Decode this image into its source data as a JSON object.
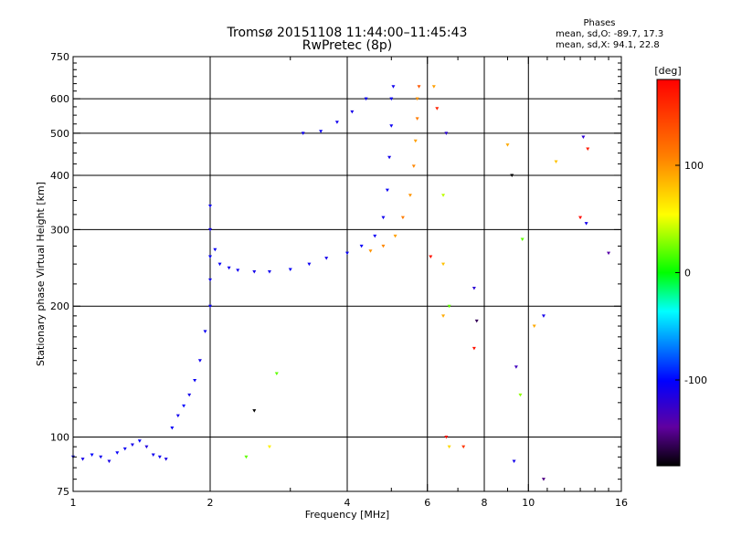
{
  "chart_data": {
    "type": "scatter",
    "title": "Tromsø 20151108 11:44:00–11:45:43",
    "subtitle": "RwPretec (8p)",
    "xlabel": "Frequency [MHz]",
    "ylabel": "Stationary phase Virtual Height [km]",
    "xscale": "log",
    "yscale": "log",
    "xlim": [
      1,
      16
    ],
    "ylim": [
      75,
      750
    ],
    "x_ticks": [
      1,
      2,
      4,
      6,
      8,
      10,
      16
    ],
    "x_tick_labels": [
      "1",
      "2",
      "4",
      "6",
      "8",
      "10",
      "16"
    ],
    "y_ticks": [
      75,
      100,
      200,
      300,
      400,
      500,
      600,
      750
    ],
    "y_tick_labels": [
      "75",
      "100",
      "200",
      "300",
      "400",
      "500",
      "600",
      "750"
    ],
    "grid": true,
    "annotation": {
      "heading": "Phases",
      "line1": "mean, sd,O: -89.7, 17.3",
      "line2": "mean, sd,X:  94.1, 22.8"
    },
    "colorbar": {
      "label": "[deg]",
      "range": [
        -180,
        180
      ],
      "ticks": [
        100,
        0,
        -100
      ],
      "tick_labels": [
        "100",
        "0",
        "-100"
      ],
      "colors": [
        "#ff0000",
        "#ff8000",
        "#ffff00",
        "#00ff00",
        "#00ffff",
        "#0000ff",
        "#6000a0",
        "#000000"
      ]
    },
    "series": [
      {
        "points": [
          [
            1.0,
            90,
            -105
          ],
          [
            1.05,
            89,
            -110
          ],
          [
            1.1,
            91,
            -100
          ],
          [
            1.15,
            90,
            -108
          ],
          [
            1.2,
            88,
            -112
          ],
          [
            1.25,
            92,
            -104
          ],
          [
            1.3,
            94,
            -106
          ],
          [
            1.35,
            96,
            -110
          ],
          [
            1.4,
            98,
            -102
          ],
          [
            1.45,
            95,
            -115
          ],
          [
            1.5,
            91,
            -108
          ],
          [
            1.55,
            90,
            -106
          ],
          [
            1.6,
            89,
            -112
          ],
          [
            1.65,
            105,
            -104
          ],
          [
            1.7,
            112,
            -108
          ],
          [
            1.75,
            118,
            -100
          ],
          [
            1.8,
            125,
            -110
          ],
          [
            1.85,
            135,
            -105
          ],
          [
            1.9,
            150,
            -108
          ],
          [
            1.95,
            175,
            -106
          ],
          [
            2.0,
            200,
            -104
          ],
          [
            2.0,
            230,
            -108
          ],
          [
            2.0,
            260,
            -102
          ],
          [
            2.0,
            300,
            -110
          ],
          [
            2.0,
            340,
            -106
          ],
          [
            2.05,
            270,
            -105
          ],
          [
            2.1,
            250,
            -104
          ],
          [
            2.2,
            245,
            -108
          ],
          [
            2.3,
            242,
            -106
          ],
          [
            2.5,
            240,
            -110
          ],
          [
            2.7,
            240,
            -108
          ],
          [
            3.0,
            243,
            -104
          ],
          [
            3.3,
            250,
            -106
          ],
          [
            3.6,
            258,
            -110
          ],
          [
            4.0,
            265,
            -105
          ],
          [
            4.3,
            275,
            -104
          ],
          [
            4.6,
            290,
            -106
          ],
          [
            4.8,
            320,
            -108
          ],
          [
            4.9,
            370,
            -105
          ],
          [
            4.95,
            440,
            -110
          ],
          [
            5.0,
            520,
            -106
          ],
          [
            5.0,
            600,
            -104
          ],
          [
            5.05,
            640,
            -108
          ],
          [
            3.2,
            500,
            -106
          ],
          [
            3.5,
            505,
            -104
          ],
          [
            3.8,
            530,
            -108
          ],
          [
            4.1,
            560,
            -110
          ],
          [
            4.4,
            600,
            -105
          ],
          [
            4.5,
            268,
            100
          ],
          [
            4.8,
            275,
            105
          ],
          [
            5.1,
            290,
            95
          ],
          [
            5.3,
            320,
            110
          ],
          [
            5.5,
            360,
            100
          ],
          [
            5.6,
            420,
            105
          ],
          [
            5.65,
            480,
            95
          ],
          [
            5.7,
            540,
            110
          ],
          [
            5.7,
            600,
            100
          ],
          [
            5.75,
            640,
            130
          ]
        ]
      }
    ],
    "outliers": [
      [
        6.2,
        640,
        95
      ],
      [
        6.3,
        570,
        160
      ],
      [
        6.6,
        500,
        -120
      ],
      [
        6.5,
        360,
        40
      ],
      [
        6.1,
        260,
        170
      ],
      [
        6.5,
        250,
        80
      ],
      [
        6.7,
        200,
        20
      ],
      [
        6.5,
        190,
        90
      ],
      [
        7.6,
        220,
        -120
      ],
      [
        7.7,
        185,
        -160
      ],
      [
        7.6,
        160,
        170
      ],
      [
        7.2,
        95,
        150
      ],
      [
        6.6,
        100,
        170
      ],
      [
        6.7,
        95,
        70
      ],
      [
        9.0,
        470,
        90
      ],
      [
        9.2,
        400,
        -180
      ],
      [
        9.7,
        285,
        20
      ],
      [
        10.8,
        190,
        -110
      ],
      [
        10.3,
        180,
        90
      ],
      [
        11.5,
        430,
        80
      ],
      [
        13.0,
        320,
        175
      ],
      [
        13.4,
        310,
        -110
      ],
      [
        13.2,
        490,
        -120
      ],
      [
        13.5,
        460,
        165
      ],
      [
        15.0,
        265,
        -140
      ],
      [
        9.4,
        145,
        -130
      ],
      [
        9.6,
        125,
        30
      ],
      [
        9.3,
        88,
        -110
      ],
      [
        10.8,
        80,
        -150
      ],
      [
        2.5,
        115,
        -180
      ],
      [
        2.7,
        95,
        60
      ],
      [
        2.8,
        140,
        20
      ],
      [
        2.4,
        90,
        20
      ]
    ]
  }
}
